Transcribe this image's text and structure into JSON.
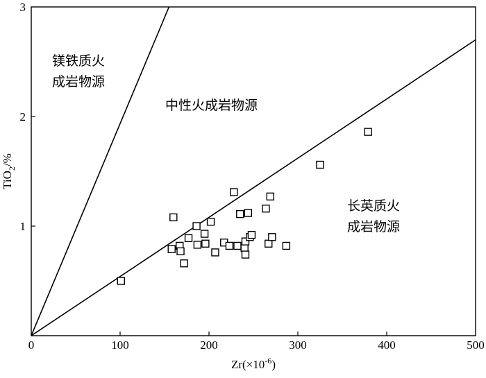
{
  "chart_data": {
    "type": "scatter",
    "xlabel_main": "Zr(×10",
    "xlabel_exp": "-6",
    "xlabel_close": ")",
    "ylabel_main": "TiO",
    "ylabel_sub": "2",
    "ylabel_unit": "/%",
    "xlim": [
      0,
      500
    ],
    "ylim": [
      0,
      3
    ],
    "x_ticks": [
      0,
      100,
      200,
      300,
      400,
      500
    ],
    "y_ticks": [
      1,
      2,
      3
    ],
    "x_tick_labels": [
      "0",
      "100",
      "200",
      "300",
      "400",
      "500"
    ],
    "y_tick_labels": [
      "1",
      "2",
      "3"
    ],
    "boundary_lines": [
      {
        "x": [
          0,
          155
        ],
        "y": [
          0,
          3
        ]
      },
      {
        "x": [
          0,
          500
        ],
        "y": [
          0,
          2.7
        ]
      }
    ],
    "regions": [
      {
        "lines": [
          "镁铁质火",
          "成岩物源"
        ]
      },
      {
        "lines": [
          "中性火成岩物源"
        ]
      },
      {
        "lines": [
          "长英质火",
          "成岩物源"
        ]
      }
    ],
    "points": [
      {
        "x": 101,
        "y": 0.5
      },
      {
        "x": 158,
        "y": 0.79
      },
      {
        "x": 160,
        "y": 1.08
      },
      {
        "x": 167,
        "y": 0.82
      },
      {
        "x": 168,
        "y": 0.77
      },
      {
        "x": 172,
        "y": 0.66
      },
      {
        "x": 177,
        "y": 0.89
      },
      {
        "x": 186,
        "y": 1.0
      },
      {
        "x": 187,
        "y": 0.83
      },
      {
        "x": 195,
        "y": 0.93
      },
      {
        "x": 196,
        "y": 0.84
      },
      {
        "x": 202,
        "y": 1.04
      },
      {
        "x": 207,
        "y": 0.76
      },
      {
        "x": 217,
        "y": 0.85
      },
      {
        "x": 223,
        "y": 0.82
      },
      {
        "x": 228,
        "y": 1.31
      },
      {
        "x": 232,
        "y": 0.82
      },
      {
        "x": 235,
        "y": 1.11
      },
      {
        "x": 240,
        "y": 0.8
      },
      {
        "x": 241,
        "y": 0.74
      },
      {
        "x": 241,
        "y": 0.86
      },
      {
        "x": 244,
        "y": 1.12
      },
      {
        "x": 246,
        "y": 0.9
      },
      {
        "x": 248,
        "y": 0.92
      },
      {
        "x": 264,
        "y": 1.16
      },
      {
        "x": 267,
        "y": 0.84
      },
      {
        "x": 269,
        "y": 1.27
      },
      {
        "x": 271,
        "y": 0.9
      },
      {
        "x": 287,
        "y": 0.82
      },
      {
        "x": 325,
        "y": 1.56
      },
      {
        "x": 379,
        "y": 1.86
      }
    ]
  }
}
